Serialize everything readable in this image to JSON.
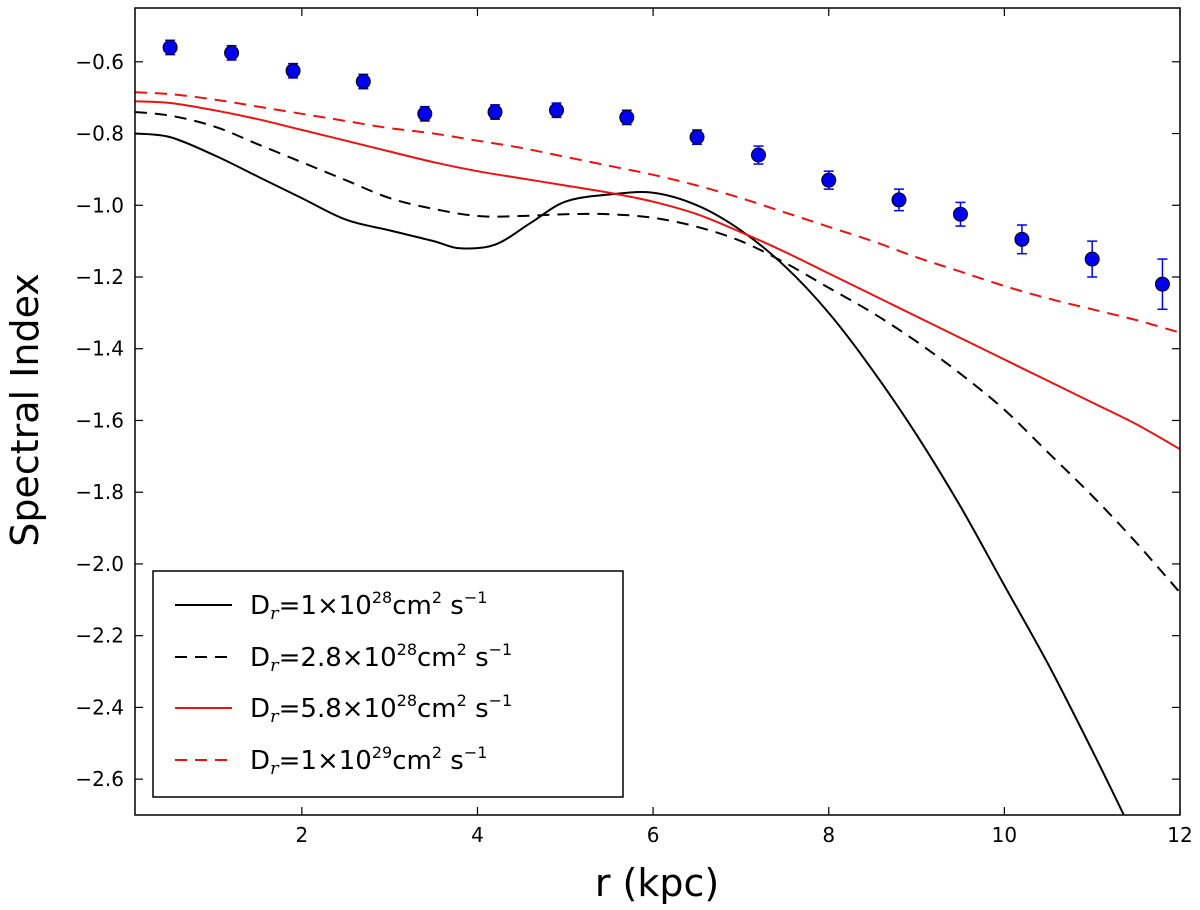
{
  "chart_data": {
    "type": "line",
    "xlabel": "r (kpc)",
    "ylabel": "Spectral Index",
    "xlim": [
      0.1,
      12
    ],
    "ylim": [
      -2.7,
      -0.45
    ],
    "xticks": [
      2,
      4,
      6,
      8,
      10,
      12
    ],
    "xtick_labels": [
      "2",
      "4",
      "6",
      "8",
      "10",
      "12"
    ],
    "yticks": [
      -0.6,
      -0.8,
      -1.0,
      -1.2,
      -1.4,
      -1.6,
      -1.8,
      -2.0,
      -2.2,
      -2.4,
      -2.6
    ],
    "ytick_labels": [
      "−0.6",
      "−0.8",
      "−1.0",
      "−1.2",
      "−1.4",
      "−1.6",
      "−1.8",
      "−2.0",
      "−2.2",
      "−2.4",
      "−2.6"
    ],
    "legend_position": "lower-left",
    "series": [
      {
        "name": "Dr=1×10^28 cm^2 s^-1",
        "legend": {
          "pre": "D",
          "sub": "r",
          "mid": "=1×10",
          "exp": "28",
          "unit": "cm",
          "unit_exp": "2",
          "s": " s",
          "s_exp": "−1"
        },
        "color": "#000000",
        "dashed": false,
        "x": [
          0.1,
          0.5,
          1.0,
          1.5,
          2.0,
          2.5,
          3.0,
          3.5,
          3.8,
          4.2,
          4.6,
          5.0,
          5.5,
          6.0,
          6.5,
          7.0,
          7.5,
          8.0,
          8.5,
          9.0,
          9.5,
          10.0,
          10.5,
          11.0,
          11.4
        ],
        "y": [
          -0.8,
          -0.81,
          -0.86,
          -0.92,
          -0.98,
          -1.04,
          -1.07,
          -1.1,
          -1.12,
          -1.11,
          -1.05,
          -0.99,
          -0.97,
          -0.965,
          -1.0,
          -1.07,
          -1.17,
          -1.3,
          -1.46,
          -1.64,
          -1.84,
          -2.06,
          -2.28,
          -2.52,
          -2.72
        ]
      },
      {
        "name": "Dr=2.8×10^28 cm^2 s^-1",
        "legend": {
          "pre": "D",
          "sub": "r",
          "mid": "=2.8×10",
          "exp": "28",
          "unit": "cm",
          "unit_exp": "2",
          "s": " s",
          "s_exp": "−1"
        },
        "color": "#000000",
        "dashed": true,
        "x": [
          0.1,
          0.5,
          1.0,
          1.5,
          2.0,
          2.5,
          3.0,
          3.5,
          4.0,
          4.5,
          5.0,
          5.5,
          6.0,
          6.5,
          7.0,
          7.5,
          8.0,
          8.5,
          9.0,
          9.5,
          10.0,
          10.5,
          11.0,
          11.5,
          12.0
        ],
        "y": [
          -0.74,
          -0.75,
          -0.78,
          -0.83,
          -0.88,
          -0.93,
          -0.98,
          -1.01,
          -1.03,
          -1.03,
          -1.025,
          -1.025,
          -1.035,
          -1.06,
          -1.1,
          -1.16,
          -1.23,
          -1.3,
          -1.38,
          -1.47,
          -1.57,
          -1.69,
          -1.81,
          -1.94,
          -2.08
        ]
      },
      {
        "name": "Dr=5.8×10^28 cm^2 s^-1",
        "legend": {
          "pre": "D",
          "sub": "r",
          "mid": "=5.8×10",
          "exp": "28",
          "unit": "cm",
          "unit_exp": "2",
          "s": " s",
          "s_exp": "−1"
        },
        "color": "#ee1111",
        "dashed": false,
        "x": [
          0.1,
          0.5,
          1.0,
          1.5,
          2.0,
          2.5,
          3.0,
          3.5,
          4.0,
          4.5,
          5.0,
          5.5,
          6.0,
          6.5,
          7.0,
          7.5,
          8.0,
          8.5,
          9.0,
          9.5,
          10.0,
          10.5,
          11.0,
          11.5,
          12.0
        ],
        "y": [
          -0.71,
          -0.715,
          -0.735,
          -0.76,
          -0.79,
          -0.82,
          -0.85,
          -0.88,
          -0.905,
          -0.925,
          -0.945,
          -0.965,
          -0.99,
          -1.025,
          -1.075,
          -1.13,
          -1.19,
          -1.25,
          -1.31,
          -1.37,
          -1.43,
          -1.49,
          -1.55,
          -1.61,
          -1.68
        ]
      },
      {
        "name": "Dr=1×10^29 cm^2 s^-1",
        "legend": {
          "pre": "D",
          "sub": "r",
          "mid": "=1×10",
          "exp": "29",
          "unit": "cm",
          "unit_exp": "2",
          "s": " s",
          "s_exp": "−1"
        },
        "color": "#ee1111",
        "dashed": true,
        "x": [
          0.1,
          0.5,
          1.0,
          1.5,
          2.0,
          2.5,
          3.0,
          3.5,
          4.0,
          4.5,
          5.0,
          5.5,
          6.0,
          6.5,
          7.0,
          7.5,
          8.0,
          8.5,
          9.0,
          9.5,
          10.0,
          10.5,
          11.0,
          11.5,
          12.0
        ],
        "y": [
          -0.685,
          -0.69,
          -0.705,
          -0.725,
          -0.745,
          -0.765,
          -0.785,
          -0.8,
          -0.82,
          -0.84,
          -0.865,
          -0.89,
          -0.915,
          -0.945,
          -0.98,
          -1.02,
          -1.06,
          -1.1,
          -1.145,
          -1.185,
          -1.225,
          -1.26,
          -1.29,
          -1.32,
          -1.355
        ]
      }
    ],
    "points": {
      "name": "observed",
      "color": "#0000ee",
      "x": [
        0.5,
        1.2,
        1.9,
        2.7,
        3.4,
        4.2,
        4.9,
        5.7,
        6.5,
        7.2,
        8.0,
        8.8,
        9.5,
        10.2,
        11.0,
        11.8
      ],
      "y": [
        -0.56,
        -0.575,
        -0.625,
        -0.655,
        -0.745,
        -0.74,
        -0.735,
        -0.755,
        -0.81,
        -0.86,
        -0.93,
        -0.985,
        -1.025,
        -1.095,
        -1.15,
        -1.22
      ],
      "err": [
        0.02,
        0.02,
        0.02,
        0.02,
        0.02,
        0.02,
        0.02,
        0.02,
        0.02,
        0.025,
        0.025,
        0.03,
        0.033,
        0.04,
        0.05,
        0.07
      ]
    }
  }
}
